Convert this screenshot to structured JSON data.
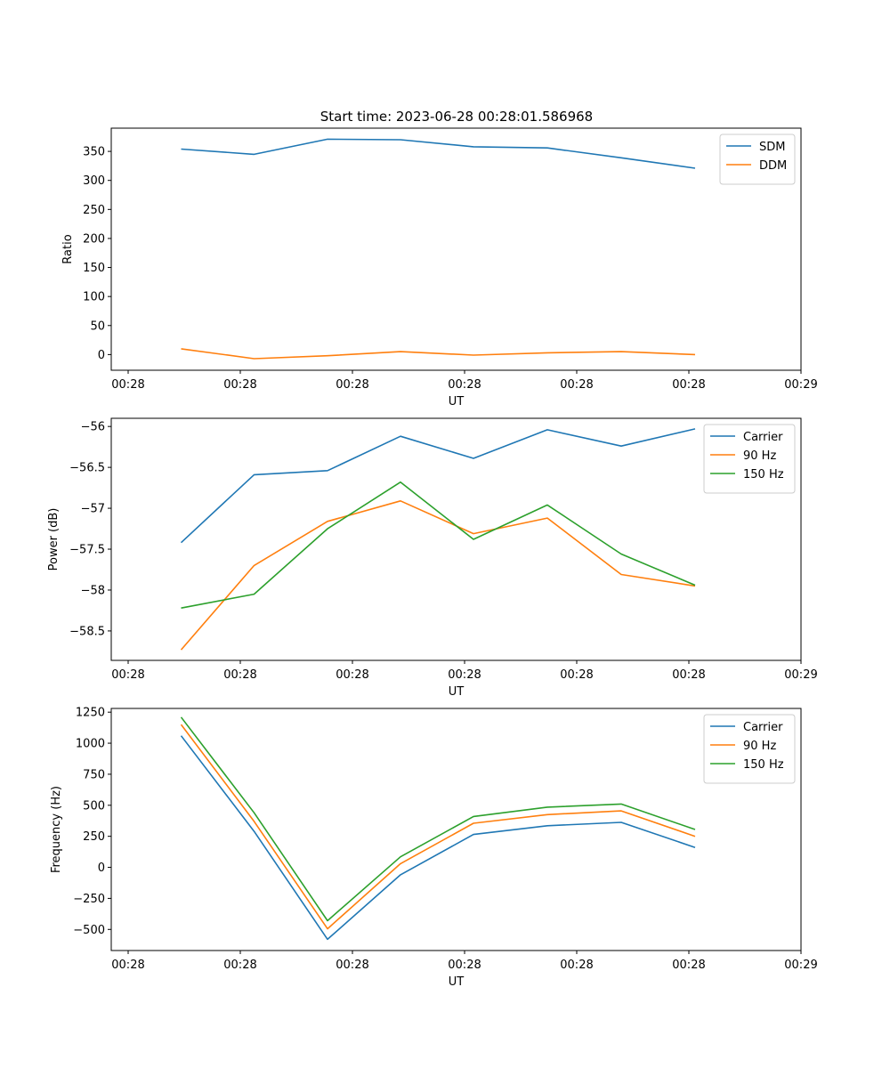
{
  "title": "Start time: 2023-06-28 00:28:01.586968",
  "chart_data": [
    {
      "type": "line",
      "title": "Start time: 2023-06-28 00:28:01.586968",
      "xlabel": "UT",
      "ylabel": "Ratio",
      "x_ticks": [
        "00:28",
        "00:28",
        "00:28",
        "00:28",
        "00:28",
        "00:28",
        "00:29"
      ],
      "y_ticks": [
        0,
        50,
        100,
        150,
        200,
        250,
        300,
        350
      ],
      "ylim": [
        -27,
        390
      ],
      "legend": "top-right",
      "series": [
        {
          "name": "SDM",
          "color": "#1f77b4",
          "values": [
            354,
            345,
            371,
            370,
            358,
            356,
            339,
            321
          ]
        },
        {
          "name": "DDM",
          "color": "#ff7f0e",
          "values": [
            10,
            -7,
            -2,
            5,
            -1,
            3,
            5,
            0
          ]
        }
      ]
    },
    {
      "type": "line",
      "xlabel": "UT",
      "ylabel": "Power (dB)",
      "x_ticks": [
        "00:28",
        "00:28",
        "00:28",
        "00:28",
        "00:28",
        "00:28",
        "00:29"
      ],
      "y_ticks": [
        -56.0,
        -56.5,
        -57.0,
        -57.5,
        -58.0,
        -58.5
      ],
      "ylim": [
        -58.86,
        -55.9
      ],
      "legend": "top-right",
      "series": [
        {
          "name": "Carrier",
          "color": "#1f77b4",
          "values": [
            -57.42,
            -56.59,
            -56.54,
            -56.12,
            -56.39,
            -56.04,
            -56.24,
            -56.03
          ]
        },
        {
          "name": "90 Hz",
          "color": "#ff7f0e",
          "values": [
            -58.73,
            -57.7,
            -57.16,
            -56.91,
            -57.31,
            -57.12,
            -57.81,
            -57.95
          ]
        },
        {
          "name": "150 Hz",
          "color": "#2ca02c",
          "values": [
            -58.22,
            -58.05,
            -57.25,
            -56.68,
            -57.38,
            -56.96,
            -57.56,
            -57.94
          ]
        }
      ]
    },
    {
      "type": "line",
      "xlabel": "UT",
      "ylabel": "Frequency (Hz)",
      "x_ticks": [
        "00:28",
        "00:28",
        "00:28",
        "00:28",
        "00:28",
        "00:28",
        "00:29"
      ],
      "y_ticks": [
        -500,
        -250,
        0,
        250,
        500,
        750,
        1000,
        1250
      ],
      "ylim": [
        -670,
        1280
      ],
      "legend": "top-right",
      "series": [
        {
          "name": "Carrier",
          "color": "#1f77b4",
          "values": [
            1060,
            290,
            -580,
            -60,
            265,
            335,
            362,
            160
          ]
        },
        {
          "name": "90 Hz",
          "color": "#ff7f0e",
          "values": [
            1150,
            370,
            -495,
            30,
            355,
            425,
            455,
            250
          ]
        },
        {
          "name": "150 Hz",
          "color": "#2ca02c",
          "values": [
            1210,
            440,
            -430,
            85,
            410,
            485,
            510,
            305
          ]
        }
      ]
    }
  ]
}
